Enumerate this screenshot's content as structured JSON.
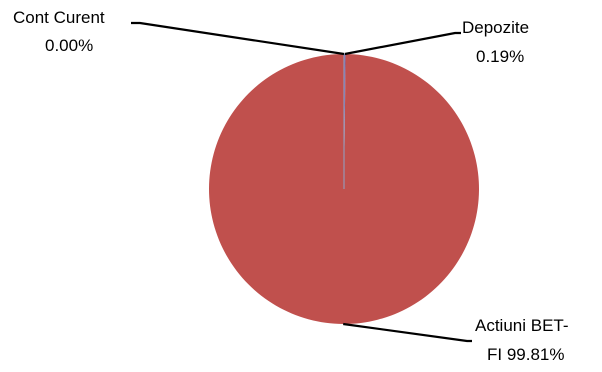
{
  "chart_data": {
    "type": "pie",
    "title": "",
    "slices": [
      {
        "name": "Cont Curent",
        "value": 0.0,
        "label_lines": [
          "Cont Curent",
          "0.00%"
        ],
        "color": "#4F81BD"
      },
      {
        "name": "Depozite",
        "value": 0.19,
        "label_lines": [
          "Depozite",
          "0.19%"
        ],
        "color": "#8064A2"
      },
      {
        "name": "Actiuni BET-FI",
        "value": 99.81,
        "label_lines": [
          "Actiuni BET-",
          "FI 99.81%"
        ],
        "color": "#C0504D"
      }
    ],
    "start_angle_deg": 0,
    "direction": "clockwise",
    "legend": "none"
  }
}
